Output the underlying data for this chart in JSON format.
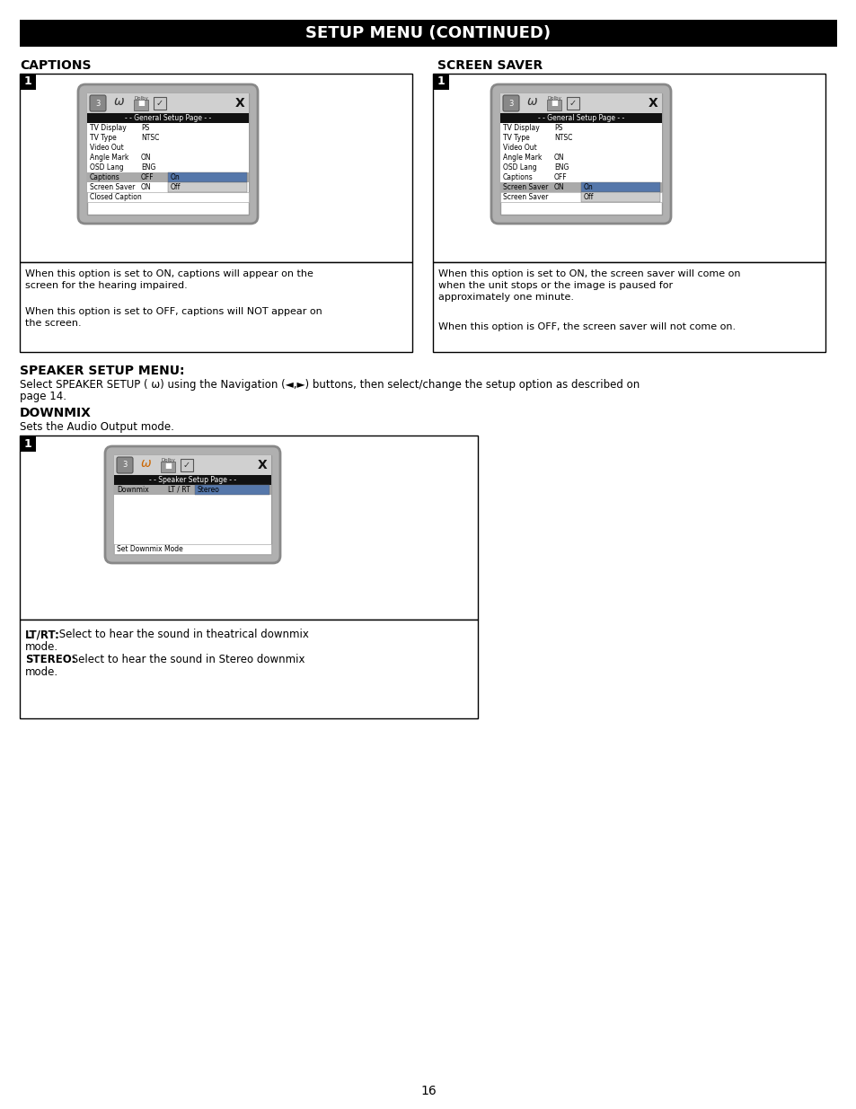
{
  "title": "SETUP MENU (CONTINUED)",
  "page_bg": "#ffffff",
  "section1_title": "CAPTIONS",
  "section2_title": "SCREEN SAVER",
  "section3_title": "SPEAKER SETUP MENU:",
  "section4_title": "DOWNMIX",
  "section4_subtitle": "Sets the Audio Output mode.",
  "captions_desc1": "When this option is set to ON, captions will appear on the\nscreen for the hearing impaired.",
  "captions_desc2": "When this option is set to OFF, captions will NOT appear on\nthe screen.",
  "screensaver_desc1": "When this option is set to ON, the screen saver will come on\nwhen the unit stops or the image is paused for\napproximately one minute.",
  "screensaver_desc2": "When this option is OFF, the screen saver will not come on.",
  "speaker_line1": "Select SPEAKER SETUP ( ω) using the Navigation (◄,►) buttons, then select/change the setup option as described on",
  "speaker_line2": "page 14.",
  "downmix_lt": "LT/RT:",
  "downmix_lt_rest": " Select to hear the sound in theatrical downmix",
  "downmix_lt_2": "mode.",
  "downmix_stereo": "STEREO:",
  "downmix_stereo_rest": " Select to hear the sound in Stereo downmix",
  "downmix_stereo_2": "mode.",
  "page_number": "16",
  "menu_items_general": [
    [
      "TV Display",
      "PS"
    ],
    [
      "TV Type",
      "NTSC"
    ],
    [
      "Video Out",
      ""
    ],
    [
      "Angle Mark",
      "ON"
    ],
    [
      "OSD Lang",
      "ENG"
    ],
    [
      "Captions",
      "OFF"
    ],
    [
      "Screen Saver",
      "ON"
    ]
  ],
  "captions_popup": [
    "On",
    "Off"
  ],
  "screensaver_popup": [
    "On",
    "Off"
  ],
  "captions_footer": "Closed Caption",
  "screensaver_footer": "Screen Saver",
  "speaker_footer": "Set Downmix Mode"
}
